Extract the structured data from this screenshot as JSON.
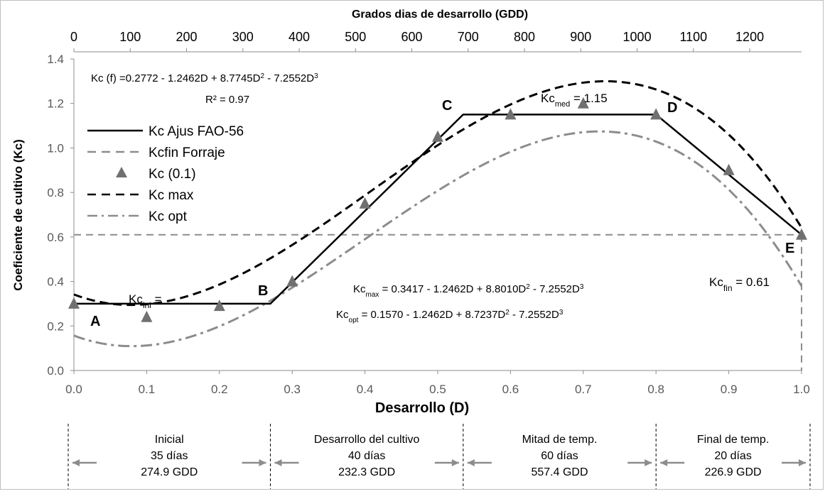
{
  "chart_data": {
    "type": "line",
    "top_axis": {
      "title": "Grados dias de desarrollo (GDD)",
      "ticks": [
        "0",
        "100",
        "200",
        "300",
        "400",
        "500",
        "600",
        "700",
        "800",
        "900",
        "1000",
        "1100",
        "1200"
      ],
      "max_gdd": 1292
    },
    "xlabel": "Desarrollo (D)",
    "ylabel": "Coeficiente de cultivo (Kc)",
    "xlim": [
      0,
      1
    ],
    "ylim": [
      0,
      1.4
    ],
    "x_ticks": [
      "0.0",
      "0.1",
      "0.2",
      "0.3",
      "0.4",
      "0.5",
      "0.6",
      "0.7",
      "0.8",
      "0.9",
      "1.0"
    ],
    "y_ticks": [
      "0.0",
      "0.2",
      "0.4",
      "0.6",
      "0.8",
      "1.0",
      "1.2",
      "1.4"
    ],
    "series": [
      {
        "name": "Kc Ajus FAO-56",
        "style": "solid",
        "color": "#000000",
        "x": [
          0.0,
          0.27,
          0.535,
          0.8,
          1.0
        ],
        "y": [
          0.3,
          0.3,
          1.15,
          1.15,
          0.61
        ]
      },
      {
        "name": "Kcfin Forraje",
        "style": "dashed-gray",
        "color": "#8c8c8c",
        "x": [
          0.0,
          1.0
        ],
        "y": [
          0.61,
          0.61
        ]
      },
      {
        "name": "Kc (0.1)",
        "style": "markers",
        "color": "#707070",
        "x": [
          0.0,
          0.1,
          0.2,
          0.3,
          0.4,
          0.5,
          0.6,
          0.7,
          0.8,
          0.9,
          1.0
        ],
        "y": [
          0.3,
          0.24,
          0.29,
          0.4,
          0.75,
          1.05,
          1.15,
          1.2,
          1.15,
          0.9,
          0.61
        ]
      },
      {
        "name": "Kc max",
        "style": "dashed-black",
        "color": "#000000",
        "coefficients": [
          0.3417,
          -1.2462,
          8.801,
          -7.2552
        ]
      },
      {
        "name": "Kc opt",
        "style": "dashdot",
        "color": "#8c8c8c",
        "coefficients": [
          0.157,
          -1.2462,
          8.7237,
          -7.2552
        ]
      }
    ],
    "annotations": {
      "fit_eq": "Kc (f) =0.2772 - 1.2462D + 8.7745D",
      "fit_eq_sq": "2",
      "fit_eq_rest": "  - 7.2552D",
      "fit_eq_cube": "3",
      "r2": "R² = 0.97",
      "point_labels": [
        "A",
        "B",
        "C",
        "D",
        "E"
      ],
      "kc_ini": {
        "base": "Kc",
        "sub": "ini",
        "rest": " ="
      },
      "kc_med": {
        "base": "Kc",
        "sub": "med",
        "rest": " = 1.15"
      },
      "kc_fin": {
        "base": "Kc",
        "sub": "fin",
        "rest": " = 0.61"
      },
      "kc_max_eq": {
        "base": "Kc",
        "sub": "max",
        "a": " = 0.3417 - 1.2462D  + 8.8010D",
        "sq": "2",
        "b": " - 7.2552D",
        "cube": "3"
      },
      "kc_opt_eq": {
        "base": "Kc",
        "sub": "opt",
        "a": " = 0.1570 - 1.2462D  + 8.7237D",
        "sq": "2",
        "b": " - 7.2552D",
        "cube": "3"
      }
    },
    "stages": [
      {
        "name": "Inicial",
        "days": "35 días",
        "gdd": "274.9 GDD"
      },
      {
        "name": "Desarrollo del cultivo",
        "days": "40 días",
        "gdd": "232.3 GDD"
      },
      {
        "name": "Mitad de temp.",
        "days": "60 días",
        "gdd": "557.4 GDD"
      },
      {
        "name": "Final de temp.",
        "days": "20 días",
        "gdd": "226.9 GDD"
      }
    ],
    "stage_bounds": [
      0.0,
      0.27,
      0.535,
      0.8,
      1.0
    ],
    "grid": false,
    "legend_position": "left"
  }
}
